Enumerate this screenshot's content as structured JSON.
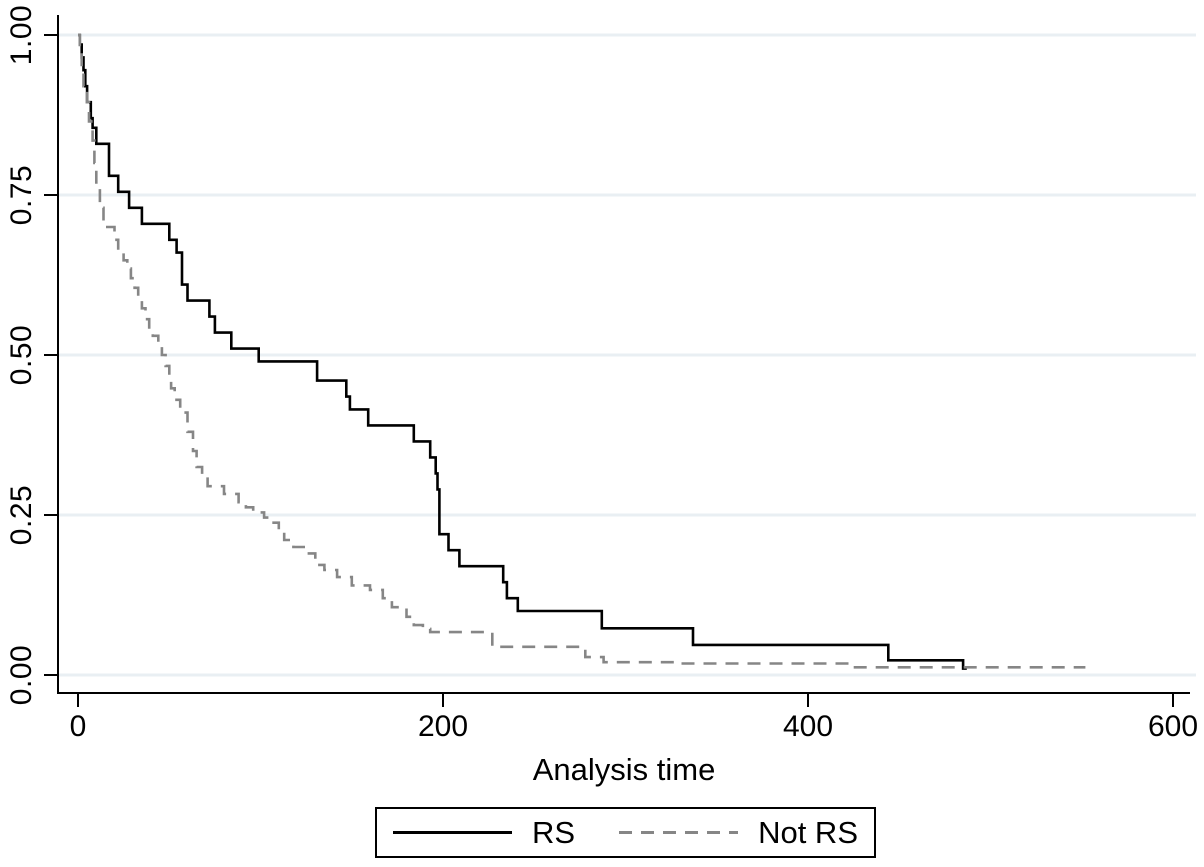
{
  "figure": {
    "background": "#ffffff",
    "axis_color": "#000000",
    "grid_color": "#e9eff3"
  },
  "xaxis": {
    "title": "Analysis time",
    "tick_values": [
      0,
      200,
      400,
      600
    ],
    "tick_labels": [
      "0",
      "200",
      "400",
      "600"
    ],
    "range": [
      0,
      600
    ]
  },
  "yaxis": {
    "tick_values": [
      0,
      0.25,
      0.5,
      0.75,
      1.0
    ],
    "tick_labels": [
      "0.00",
      "0.25",
      "0.50",
      "0.75",
      "1.00"
    ],
    "range": [
      0,
      1
    ]
  },
  "legend": {
    "items": [
      {
        "label": "RS",
        "style": "solid",
        "color": "#000000"
      },
      {
        "label": "Not RS",
        "style": "dashed",
        "color": "#868686"
      }
    ]
  },
  "chart_data": {
    "type": "line",
    "subtype": "kaplan-meier-step",
    "title": "",
    "xlabel": "Analysis time",
    "ylabel": "",
    "xlim": [
      0,
      600
    ],
    "ylim": [
      0,
      1
    ],
    "grid": "horizontal",
    "legend_position": "bottom",
    "series": [
      {
        "name": "RS",
        "color": "#000000",
        "dash": "solid",
        "end_t": 487,
        "points": [
          [
            0,
            1.0
          ],
          [
            1,
            0.985
          ],
          [
            2,
            0.965
          ],
          [
            3,
            0.945
          ],
          [
            4,
            0.92
          ],
          [
            5,
            0.895
          ],
          [
            7,
            0.87
          ],
          [
            8,
            0.855
          ],
          [
            10,
            0.83
          ],
          [
            17,
            0.78
          ],
          [
            22,
            0.755
          ],
          [
            28,
            0.73
          ],
          [
            35,
            0.705
          ],
          [
            50,
            0.68
          ],
          [
            54,
            0.66
          ],
          [
            57,
            0.61
          ],
          [
            60,
            0.585
          ],
          [
            72,
            0.56
          ],
          [
            75,
            0.535
          ],
          [
            84,
            0.51
          ],
          [
            99,
            0.49
          ],
          [
            131,
            0.46
          ],
          [
            147,
            0.435
          ],
          [
            149,
            0.415
          ],
          [
            159,
            0.39
          ],
          [
            184,
            0.365
          ],
          [
            193,
            0.34
          ],
          [
            196,
            0.315
          ],
          [
            197,
            0.29
          ],
          [
            198,
            0.22
          ],
          [
            203,
            0.195
          ],
          [
            209,
            0.17
          ],
          [
            233,
            0.145
          ],
          [
            235,
            0.12
          ],
          [
            241,
            0.1
          ],
          [
            287,
            0.073
          ],
          [
            337,
            0.047
          ],
          [
            444,
            0.023
          ],
          [
            485,
            0.01
          ]
        ]
      },
      {
        "name": "Not RS",
        "color": "#868686",
        "dash": "dashed",
        "end_t": 552,
        "points": [
          [
            0,
            1.0
          ],
          [
            1,
            0.975
          ],
          [
            2,
            0.95
          ],
          [
            3,
            0.92
          ],
          [
            5,
            0.895
          ],
          [
            6,
            0.865
          ],
          [
            8,
            0.835
          ],
          [
            9,
            0.8
          ],
          [
            10,
            0.765
          ],
          [
            12,
            0.73
          ],
          [
            14,
            0.7
          ],
          [
            20,
            0.68
          ],
          [
            22,
            0.662
          ],
          [
            25,
            0.648
          ],
          [
            27,
            0.635
          ],
          [
            29,
            0.62
          ],
          [
            31,
            0.605
          ],
          [
            33,
            0.59
          ],
          [
            35,
            0.573
          ],
          [
            37,
            0.556
          ],
          [
            39,
            0.543
          ],
          [
            41,
            0.53
          ],
          [
            44,
            0.515
          ],
          [
            46,
            0.5
          ],
          [
            48,
            0.483
          ],
          [
            50,
            0.468
          ],
          [
            51,
            0.448
          ],
          [
            53,
            0.43
          ],
          [
            56,
            0.41
          ],
          [
            60,
            0.38
          ],
          [
            63,
            0.35
          ],
          [
            65,
            0.325
          ],
          [
            68,
            0.313
          ],
          [
            71,
            0.295
          ],
          [
            80,
            0.283
          ],
          [
            88,
            0.27
          ],
          [
            92,
            0.262
          ],
          [
            96,
            0.254
          ],
          [
            102,
            0.246
          ],
          [
            105,
            0.238
          ],
          [
            110,
            0.227
          ],
          [
            113,
            0.211
          ],
          [
            118,
            0.2
          ],
          [
            125,
            0.19
          ],
          [
            130,
            0.172
          ],
          [
            135,
            0.164
          ],
          [
            142,
            0.153
          ],
          [
            150,
            0.14
          ],
          [
            160,
            0.133
          ],
          [
            167,
            0.12
          ],
          [
            172,
            0.106
          ],
          [
            180,
            0.091
          ],
          [
            184,
            0.078
          ],
          [
            189,
            0.072
          ],
          [
            193,
            0.067
          ],
          [
            227,
            0.044
          ],
          [
            278,
            0.028
          ],
          [
            288,
            0.02
          ],
          [
            330,
            0.018
          ],
          [
            423,
            0.012
          ]
        ]
      }
    ]
  }
}
